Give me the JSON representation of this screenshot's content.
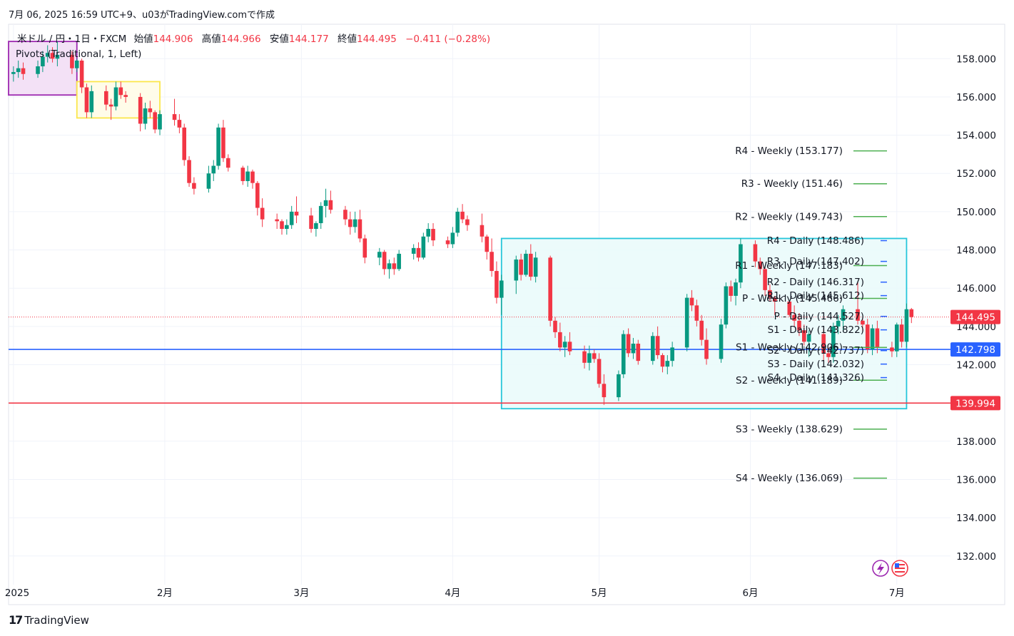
{
  "header": {
    "caption": "7月 06, 2025 16:59 UTC+9、u03がTradingView.comで作成"
  },
  "legend": {
    "symbol": "米ドル / 円・1日・FXCM",
    "open_label": "始値",
    "open_value": "144.906",
    "high_label": "高値",
    "high_value": "144.966",
    "low_label": "安値",
    "low_value": "144.177",
    "close_label": "終値",
    "close_value": "144.495",
    "change": "−0.411 (−0.28%)",
    "indicator": "Pivots (Traditional, 1, Left)"
  },
  "footer": {
    "brand_mark": "17",
    "brand_name": "TradingView"
  },
  "colors": {
    "up": "#089981",
    "down": "#f23645",
    "weekly_line": "#4caf50",
    "daily_tick": "#2962ff",
    "box_stroke": "#26c6da",
    "box_fill": "#e9fafa",
    "support_line": "#2962ff",
    "red_line": "#f23645",
    "purple_box": "#9c27b0",
    "yellow_box": "#fbe64a"
  },
  "chart_data": {
    "type": "candlestick",
    "ylim": [
      130.5,
      159.8
    ],
    "y_ticks": [
      "158.000",
      "156.000",
      "154.000",
      "152.000",
      "150.000",
      "148.000",
      "146.000",
      "144.000",
      "142.000",
      "140.000",
      "138.000",
      "136.000",
      "134.000",
      "132.000"
    ],
    "y_tick_values": [
      158,
      156,
      154,
      152,
      150,
      148,
      146,
      144,
      142,
      140,
      138,
      136,
      134,
      132
    ],
    "x_labels": [
      {
        "label": "2025",
        "date": "2025-01-01"
      },
      {
        "label": "2月",
        "date": "2025-02-01"
      },
      {
        "label": "3月",
        "date": "2025-03-01"
      },
      {
        "label": "4月",
        "date": "2025-04-01"
      },
      {
        "label": "5月",
        "date": "2025-05-01"
      },
      {
        "label": "6月",
        "date": "2025-06-01"
      },
      {
        "label": "7月",
        "date": "2025-07-01"
      }
    ],
    "current_price": {
      "label": "144.495",
      "value": 144.495
    },
    "horizontal_lines": [
      {
        "label": "142.798",
        "value": 142.798,
        "color": "#2962ff"
      },
      {
        "label": "139.994",
        "value": 139.994,
        "color": "#f23645"
      }
    ],
    "pivots_weekly": [
      {
        "label": "R4 - Weekly (153.177)",
        "value": 153.177
      },
      {
        "label": "R3 - Weekly (151.46)",
        "value": 151.46
      },
      {
        "label": "R2 - Weekly (149.743)",
        "value": 149.743
      },
      {
        "label": "R1 - Weekly (147.183)",
        "value": 147.183
      },
      {
        "label": "P - Weekly (145.466)",
        "value": 145.466
      },
      {
        "label": "S1 - Weekly (142.906)",
        "value": 142.906
      },
      {
        "label": "S2 - Weekly (141.189)",
        "value": 141.189
      },
      {
        "label": "S3 - Weekly (138.629)",
        "value": 138.629
      },
      {
        "label": "S4 - Weekly (136.069)",
        "value": 136.069
      }
    ],
    "pivots_daily": [
      {
        "label": "R4 - Daily (148.486)",
        "value": 148.486
      },
      {
        "label": "R3 - Daily (147.402)",
        "value": 147.402
      },
      {
        "label": "R2 - Daily (146.317)",
        "value": 146.317
      },
      {
        "label": "R1 - Daily (145.612)",
        "value": 145.612
      },
      {
        "label": "P - Daily (144.527)",
        "value": 144.527
      },
      {
        "label": "S1 - Daily (143.822)",
        "value": 143.822
      },
      {
        "label": "S2 - Daily (142.737)",
        "value": 142.737
      },
      {
        "label": "S3 - Daily (142.032)",
        "value": 142.032
      },
      {
        "label": "S4 - Daily (141.326)",
        "value": 141.326
      }
    ],
    "zones": [
      {
        "from": "2024-12-31",
        "to": "2025-01-14",
        "high": 158.9,
        "low": 156.1,
        "color": "#9c27b0"
      },
      {
        "from": "2025-01-14",
        "to": "2025-01-31",
        "high": 156.8,
        "low": 154.9,
        "color": "#fbe64a"
      },
      {
        "from": "2025-04-11",
        "to": "2025-07-03",
        "high": 148.6,
        "low": 139.7,
        "color": "#26c6da"
      }
    ],
    "candles": [
      [
        "2025-01-01",
        157.2,
        157.6,
        156.8,
        157.3
      ],
      [
        "2025-01-02",
        157.3,
        157.9,
        157.0,
        157.5
      ],
      [
        "2025-01-03",
        157.5,
        157.8,
        156.9,
        157.2
      ],
      [
        "2025-01-06",
        157.2,
        157.9,
        157.0,
        157.6
      ],
      [
        "2025-01-07",
        157.6,
        158.4,
        157.3,
        158.1
      ],
      [
        "2025-01-08",
        158.1,
        158.7,
        157.8,
        158.3
      ],
      [
        "2025-01-09",
        158.3,
        158.6,
        157.8,
        158.0
      ],
      [
        "2025-01-10",
        158.0,
        158.9,
        157.6,
        158.2
      ],
      [
        "2025-01-13",
        158.2,
        158.4,
        157.2,
        157.5
      ],
      [
        "2025-01-14",
        157.5,
        158.0,
        157.3,
        157.9
      ],
      [
        "2025-01-15",
        157.9,
        158.0,
        156.2,
        156.5
      ],
      [
        "2025-01-16",
        156.5,
        156.7,
        154.9,
        155.2
      ],
      [
        "2025-01-17",
        155.2,
        156.6,
        154.9,
        156.3
      ],
      [
        "2025-01-20",
        156.3,
        156.6,
        155.3,
        155.6
      ],
      [
        "2025-01-21",
        155.6,
        155.9,
        154.8,
        155.5
      ],
      [
        "2025-01-22",
        155.5,
        156.8,
        155.3,
        156.5
      ],
      [
        "2025-01-23",
        156.5,
        156.8,
        155.9,
        156.1
      ],
      [
        "2025-01-24",
        156.1,
        156.3,
        155.7,
        156.0
      ],
      [
        "2025-01-27",
        156.0,
        156.2,
        154.2,
        154.6
      ],
      [
        "2025-01-28",
        154.6,
        155.7,
        154.3,
        155.4
      ],
      [
        "2025-01-29",
        155.4,
        155.8,
        154.9,
        155.2
      ],
      [
        "2025-01-30",
        155.2,
        155.3,
        154.1,
        154.3
      ],
      [
        "2025-01-31",
        154.3,
        155.3,
        154.0,
        155.1
      ],
      [
        "2025-02-03",
        155.1,
        155.9,
        154.5,
        154.8
      ],
      [
        "2025-02-04",
        154.8,
        155.1,
        154.1,
        154.4
      ],
      [
        "2025-02-05",
        154.4,
        154.6,
        152.4,
        152.7
      ],
      [
        "2025-02-06",
        152.7,
        152.9,
        151.3,
        151.5
      ],
      [
        "2025-02-07",
        151.5,
        151.8,
        150.9,
        151.2
      ],
      [
        "2025-02-10",
        151.2,
        152.4,
        151.0,
        152.0
      ],
      [
        "2025-02-11",
        152.0,
        152.7,
        151.6,
        152.4
      ],
      [
        "2025-02-12",
        152.4,
        154.6,
        152.2,
        154.4
      ],
      [
        "2025-02-13",
        154.4,
        154.8,
        152.6,
        152.8
      ],
      [
        "2025-02-14",
        152.8,
        153.0,
        152.1,
        152.3
      ],
      [
        "2025-02-17",
        152.3,
        152.4,
        151.4,
        151.6
      ],
      [
        "2025-02-18",
        151.6,
        152.4,
        151.3,
        152.1
      ],
      [
        "2025-02-19",
        152.1,
        152.2,
        151.2,
        151.5
      ],
      [
        "2025-02-20",
        151.5,
        151.6,
        149.8,
        150.2
      ],
      [
        "2025-02-21",
        150.2,
        150.7,
        149.2,
        149.6
      ],
      [
        "2025-02-24",
        149.6,
        149.9,
        149.1,
        149.5
      ],
      [
        "2025-02-25",
        149.5,
        149.6,
        148.8,
        149.1
      ],
      [
        "2025-02-26",
        149.1,
        149.6,
        148.8,
        149.3
      ],
      [
        "2025-02-27",
        149.3,
        150.3,
        149.1,
        150.0
      ],
      [
        "2025-02-28",
        150.0,
        150.8,
        149.4,
        149.8
      ],
      [
        "2025-03-03",
        149.8,
        150.2,
        148.9,
        149.1
      ],
      [
        "2025-03-04",
        149.1,
        149.5,
        148.7,
        149.4
      ],
      [
        "2025-03-05",
        149.4,
        150.5,
        149.1,
        150.3
      ],
      [
        "2025-03-06",
        150.3,
        151.2,
        149.7,
        150.6
      ],
      [
        "2025-03-07",
        150.6,
        151.1,
        149.9,
        150.1
      ],
      [
        "2025-03-10",
        150.1,
        150.3,
        149.3,
        149.6
      ],
      [
        "2025-03-11",
        149.6,
        150.0,
        148.8,
        149.2
      ],
      [
        "2025-03-12",
        149.2,
        150.0,
        148.9,
        149.6
      ],
      [
        "2025-03-13",
        149.6,
        150.1,
        148.4,
        148.6
      ],
      [
        "2025-03-14",
        148.6,
        148.8,
        147.3,
        147.6
      ],
      [
        "2025-03-17",
        147.6,
        148.1,
        147.2,
        147.9
      ],
      [
        "2025-03-18",
        147.9,
        148.0,
        146.7,
        147.0
      ],
      [
        "2025-03-19",
        147.0,
        147.5,
        146.5,
        147.3
      ],
      [
        "2025-03-20",
        147.3,
        147.6,
        146.7,
        147.0
      ],
      [
        "2025-03-21",
        147.0,
        148.0,
        146.9,
        147.8
      ],
      [
        "2025-03-24",
        147.8,
        148.3,
        147.5,
        148.1
      ],
      [
        "2025-03-25",
        148.1,
        148.4,
        147.4,
        147.6
      ],
      [
        "2025-03-26",
        147.6,
        148.9,
        147.5,
        148.7
      ],
      [
        "2025-03-27",
        148.7,
        149.4,
        148.4,
        149.1
      ],
      [
        "2025-03-28",
        149.1,
        149.4,
        148.2,
        148.5
      ],
      [
        "2025-03-31",
        148.5,
        148.7,
        148.1,
        148.3
      ],
      [
        "2025-04-01",
        148.3,
        149.2,
        148.1,
        148.9
      ],
      [
        "2025-04-02",
        148.9,
        150.2,
        148.7,
        150.0
      ],
      [
        "2025-04-03",
        150.0,
        150.4,
        149.4,
        149.6
      ],
      [
        "2025-04-04",
        149.6,
        149.8,
        149.0,
        149.3
      ],
      [
        "2025-04-07",
        149.3,
        149.9,
        148.4,
        148.7
      ],
      [
        "2025-04-08",
        148.7,
        148.8,
        147.5,
        147.9
      ],
      [
        "2025-04-09",
        147.9,
        148.6,
        146.6,
        146.9
      ],
      [
        "2025-04-10",
        146.9,
        147.4,
        145.2,
        145.5
      ],
      [
        "2025-04-11",
        145.5,
        146.7,
        144.6,
        146.4
      ],
      [
        "2025-04-14",
        146.4,
        147.7,
        145.7,
        147.5
      ],
      [
        "2025-04-15",
        147.5,
        147.8,
        146.4,
        146.7
      ],
      [
        "2025-04-16",
        146.7,
        148.0,
        146.6,
        147.8
      ],
      [
        "2025-04-17",
        147.8,
        148.3,
        146.4,
        146.6
      ],
      [
        "2025-04-18",
        146.6,
        147.9,
        146.3,
        147.6
      ],
      [
        "2025-04-21",
        147.6,
        147.7,
        144.0,
        144.3
      ],
      [
        "2025-04-22",
        144.3,
        144.5,
        143.4,
        143.7
      ],
      [
        "2025-04-23",
        143.7,
        144.2,
        142.7,
        142.9
      ],
      [
        "2025-04-24",
        142.9,
        143.5,
        142.4,
        143.2
      ],
      [
        "2025-04-25",
        143.2,
        143.7,
        142.5,
        142.7
      ],
      [
        "2025-04-28",
        142.7,
        143.0,
        141.8,
        142.1
      ],
      [
        "2025-04-29",
        142.1,
        143.0,
        141.7,
        142.6
      ],
      [
        "2025-04-30",
        142.6,
        142.8,
        142.1,
        142.3
      ],
      [
        "2025-05-01",
        142.3,
        142.6,
        140.8,
        141.0
      ],
      [
        "2025-05-02",
        141.0,
        141.5,
        139.9,
        140.3
      ],
      [
        "2025-05-05",
        140.3,
        141.7,
        140.1,
        141.5
      ],
      [
        "2025-05-06",
        141.5,
        143.8,
        141.3,
        143.6
      ],
      [
        "2025-05-07",
        143.6,
        143.9,
        142.4,
        142.6
      ],
      [
        "2025-05-08",
        142.6,
        143.4,
        142.3,
        143.1
      ],
      [
        "2025-05-09",
        143.1,
        143.3,
        142.0,
        142.2
      ],
      [
        "2025-05-12",
        142.2,
        143.7,
        142.0,
        143.5
      ],
      [
        "2025-05-13",
        143.5,
        144.0,
        142.3,
        142.5
      ],
      [
        "2025-05-14",
        142.5,
        142.6,
        141.6,
        141.9
      ],
      [
        "2025-05-15",
        141.9,
        142.5,
        141.5,
        142.2
      ],
      [
        "2025-05-16",
        142.2,
        143.2,
        141.9,
        142.9
      ],
      [
        "2025-05-19",
        142.9,
        145.7,
        142.7,
        145.5
      ],
      [
        "2025-05-20",
        145.5,
        145.9,
        144.8,
        145.1
      ],
      [
        "2025-05-21",
        145.1,
        145.4,
        144.0,
        144.3
      ],
      [
        "2025-05-22",
        144.3,
        144.6,
        143.0,
        143.3
      ],
      [
        "2025-05-23",
        143.3,
        143.9,
        142.0,
        142.3
      ],
      [
        "2025-05-26",
        142.3,
        144.4,
        142.1,
        144.1
      ],
      [
        "2025-05-27",
        144.1,
        146.3,
        143.9,
        146.1
      ],
      [
        "2025-05-28",
        146.1,
        146.4,
        145.3,
        145.6
      ],
      [
        "2025-05-29",
        145.6,
        146.5,
        145.1,
        146.3
      ],
      [
        "2025-05-30",
        146.3,
        148.6,
        146.0,
        148.3
      ],
      [
        "2025-06-02",
        148.3,
        148.5,
        147.1,
        147.4
      ],
      [
        "2025-06-03",
        147.4,
        147.6,
        146.7,
        147.0
      ],
      [
        "2025-06-04",
        147.0,
        147.1,
        145.6,
        145.9
      ],
      [
        "2025-06-05",
        145.9,
        146.2,
        145.3,
        145.5
      ],
      [
        "2025-06-06",
        145.5,
        145.6,
        144.6,
        145.3
      ],
      [
        "2025-06-09",
        145.3,
        145.3,
        144.5,
        144.6
      ],
      [
        "2025-06-10",
        144.6,
        145.1,
        144.0,
        144.3
      ],
      [
        "2025-06-11",
        144.3,
        144.7,
        143.5,
        143.8
      ],
      [
        "2025-06-12",
        143.8,
        144.1,
        143.0,
        143.2
      ],
      [
        "2025-06-13",
        143.2,
        143.8,
        142.4,
        143.6
      ],
      [
        "2025-06-16",
        143.6,
        143.9,
        142.2,
        142.6
      ],
      [
        "2025-06-17",
        142.6,
        142.9,
        142.1,
        142.4
      ],
      [
        "2025-06-18",
        142.4,
        144.2,
        142.1,
        144.0
      ],
      [
        "2025-06-19",
        144.0,
        144.6,
        143.6,
        144.3
      ],
      [
        "2025-06-20",
        144.3,
        145.1,
        143.8,
        144.9
      ],
      [
        "2025-06-23",
        144.9,
        146.3,
        144.1,
        144.3
      ],
      [
        "2025-06-24",
        144.3,
        144.5,
        143.7,
        144.1
      ],
      [
        "2025-06-25",
        144.1,
        144.4,
        142.6,
        142.8
      ],
      [
        "2025-06-26",
        142.8,
        144.1,
        142.5,
        143.9
      ],
      [
        "2025-06-27",
        143.9,
        144.3,
        142.6,
        142.9
      ],
      [
        "2025-06-30",
        142.9,
        143.2,
        142.4,
        142.7
      ],
      [
        "2025-07-01",
        142.7,
        144.2,
        142.4,
        144.1
      ],
      [
        "2025-07-02",
        144.1,
        144.4,
        142.9,
        143.2
      ],
      [
        "2025-07-03",
        143.2,
        145.2,
        142.9,
        144.9
      ],
      [
        "2025-07-04",
        144.9,
        144.966,
        144.177,
        144.495
      ]
    ],
    "visible_high_low_markers": []
  }
}
